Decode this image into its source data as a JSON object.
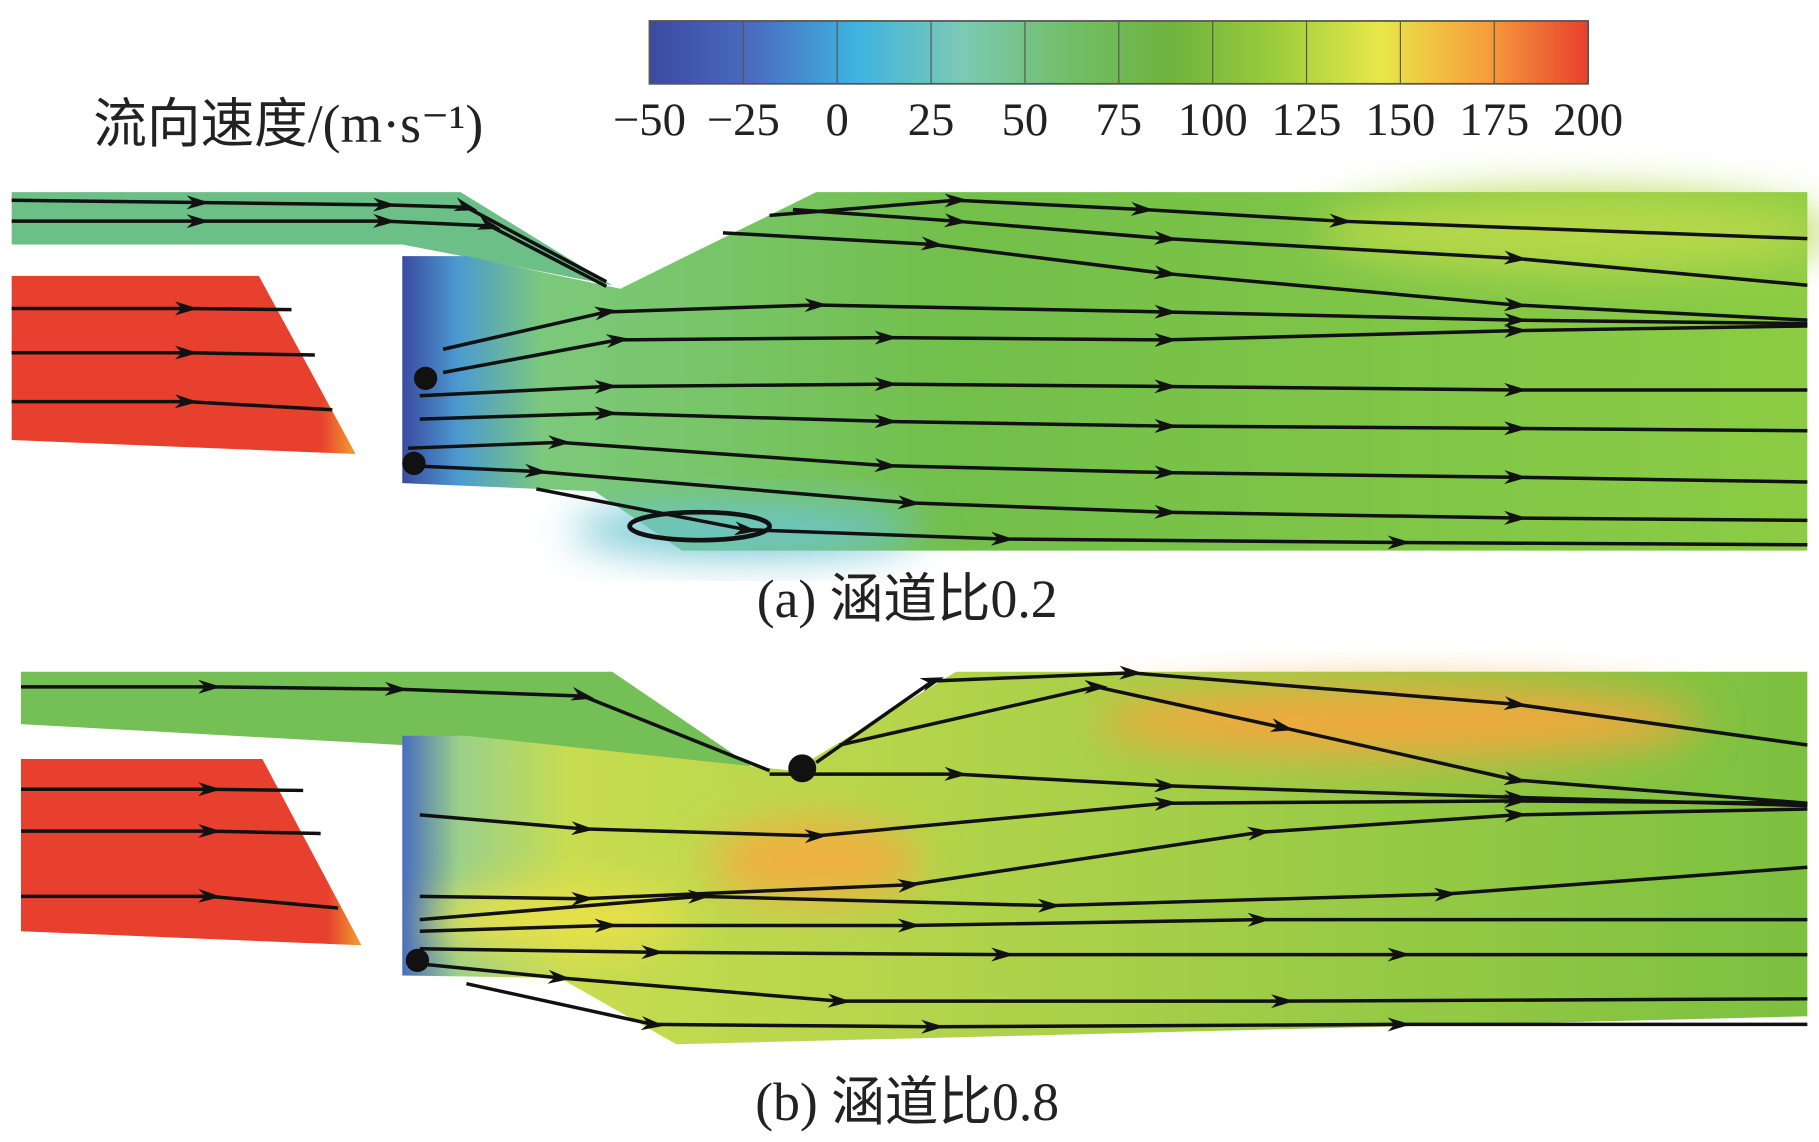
{
  "colorbar": {
    "title": "流向速度/(m·s⁻¹)",
    "ticks": [
      {
        "value": -50,
        "label": "−50"
      },
      {
        "value": -25,
        "label": "−25"
      },
      0,
      25,
      50,
      75,
      100,
      125,
      150,
      175,
      200
    ],
    "range": [
      -50,
      200
    ],
    "colors": [
      "#3b4aa0",
      "#4a6cc0",
      "#3fb4e0",
      "#7cc9b4",
      "#72bf6a",
      "#6db33f",
      "#9ccc3c",
      "#e8e84a",
      "#f6a03c",
      "#e8402e"
    ]
  },
  "panels": [
    {
      "caption": "(a) 涵道比0.2"
    },
    {
      "caption": "(b) 涵道比0.8"
    }
  ]
}
